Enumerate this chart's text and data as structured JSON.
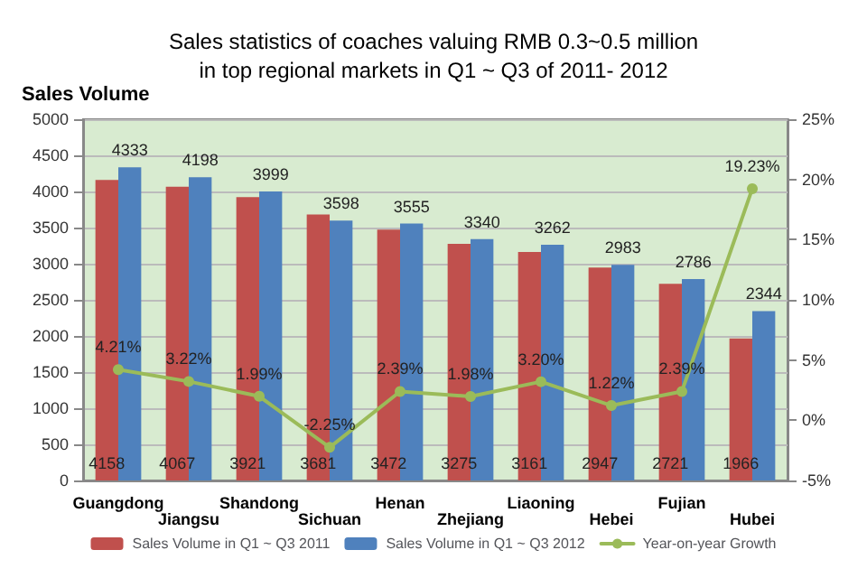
{
  "chart_data": {
    "type": "bar",
    "title": "Sales statistics of coaches valuing RMB 0.3~0.5 million\nin top regional markets in Q1 ~ Q3 of 2011- 2012",
    "ylabel": "Sales Volume",
    "categories": [
      "Guangdong",
      "Jiangsu",
      "Shandong",
      "Sichuan",
      "Henan",
      "Zhejiang",
      "Liaoning",
      "Hebei",
      "Fujian",
      "Hubei"
    ],
    "series": [
      {
        "name": "Sales Volume in Q1 ~ Q3 2011",
        "color": "#c0504d",
        "values": [
          4158,
          4067,
          3921,
          3681,
          3472,
          3275,
          3161,
          2947,
          2721,
          1966
        ]
      },
      {
        "name": "Sales Volume in Q1 ~ Q3 2012",
        "color": "#4f81bd",
        "values": [
          4333,
          4198,
          3999,
          3598,
          3555,
          3340,
          3262,
          2983,
          2786,
          2344
        ]
      },
      {
        "name": "Year-on-year Growth",
        "type": "line",
        "axis": "y2",
        "color": "#9bbb59",
        "values": [
          4.21,
          3.22,
          1.99,
          -2.25,
          2.39,
          1.98,
          3.2,
          1.22,
          2.39,
          19.23
        ],
        "value_labels": [
          "4.21%",
          "3.22%",
          "1.99%",
          "-2.25%",
          "2.39%",
          "1.98%",
          "3.20%",
          "1.22%",
          "2.39%",
          "19.23%"
        ]
      }
    ],
    "ylim": [
      0,
      5000
    ],
    "yticks": [
      0,
      500,
      1000,
      1500,
      2000,
      2500,
      3000,
      3500,
      4000,
      4500,
      5000
    ],
    "y2lim": [
      -5,
      25
    ],
    "y2ticks": [
      {
        "value": -5,
        "label": "-5%"
      },
      {
        "value": 0,
        "label": "0%"
      },
      {
        "value": 5,
        "label": "5%"
      },
      {
        "value": 10,
        "label": "10%"
      },
      {
        "value": 15,
        "label": "15%"
      },
      {
        "value": 20,
        "label": "20%"
      },
      {
        "value": 25,
        "label": "25%"
      }
    ],
    "data_labels": true,
    "grid": "y",
    "legend": "bottom",
    "marker": "circle",
    "line_style": "solid"
  }
}
